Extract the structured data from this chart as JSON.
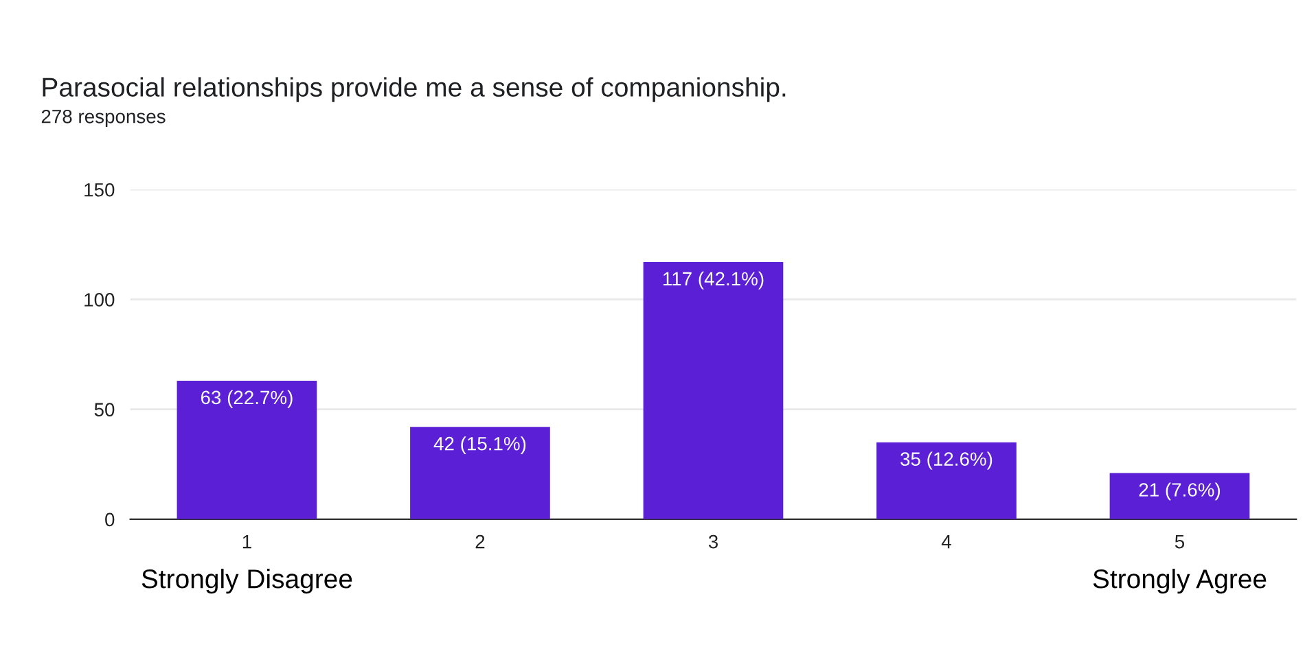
{
  "chart_data": {
    "type": "bar",
    "title": "Parasocial relationships provide me a sense of companionship.",
    "subtitle": "278 responses",
    "categories": [
      "1",
      "2",
      "3",
      "4",
      "5"
    ],
    "values": [
      63,
      42,
      117,
      35,
      21
    ],
    "value_labels": [
      "63 (22.7%)",
      "42 (15.1%)",
      "117 (42.1%)",
      "35 (12.6%)",
      "21 (7.6%)"
    ],
    "color": "#5b1fd6",
    "ylim": [
      0,
      150
    ],
    "yticks": [
      0,
      50,
      100,
      150
    ],
    "grid": "y",
    "legend": false,
    "annotations": [
      "Strongly Disagree",
      "Strongly Agree"
    ]
  }
}
